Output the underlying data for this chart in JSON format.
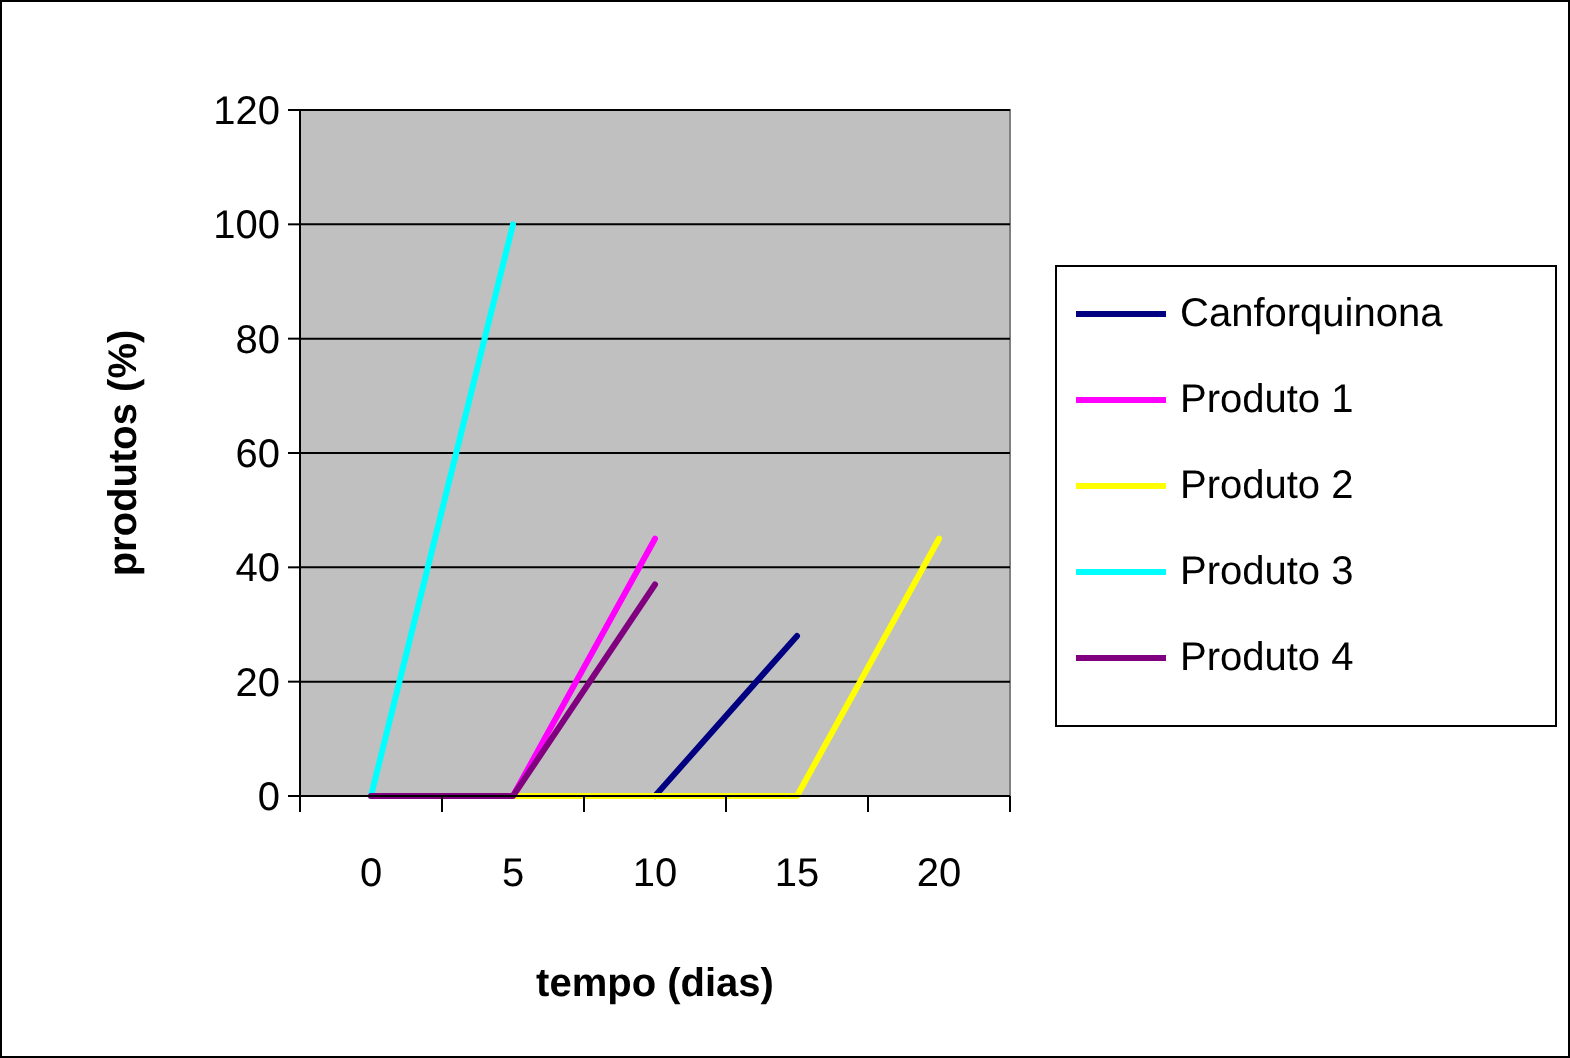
{
  "chart_data": {
    "type": "line",
    "xlabel": "tempo (dias)",
    "ylabel": "produtos (%)",
    "categories": [
      "0",
      "5",
      "10",
      "15",
      "20"
    ],
    "series": [
      {
        "name": "Canforquinona",
        "color": "#000080",
        "values": [
          null,
          null,
          0,
          28,
          null
        ]
      },
      {
        "name": "Produto 1",
        "color": "#ff00ff",
        "values": [
          0,
          0,
          45,
          null,
          null
        ]
      },
      {
        "name": "Produto 2",
        "color": "#ffff00",
        "values": [
          0,
          0,
          0,
          0,
          45
        ]
      },
      {
        "name": "Produto 3",
        "color": "#00ffff",
        "values": [
          0,
          100,
          null,
          null,
          null
        ]
      },
      {
        "name": "Produto 4",
        "color": "#800080",
        "values": [
          0,
          0,
          37,
          null,
          null
        ]
      }
    ],
    "ylim": [
      0,
      120
    ],
    "yticks": [
      0,
      20,
      40,
      60,
      80,
      100,
      120
    ],
    "grid": "y",
    "legend": "right",
    "marker": "none",
    "line_style": "solid"
  }
}
